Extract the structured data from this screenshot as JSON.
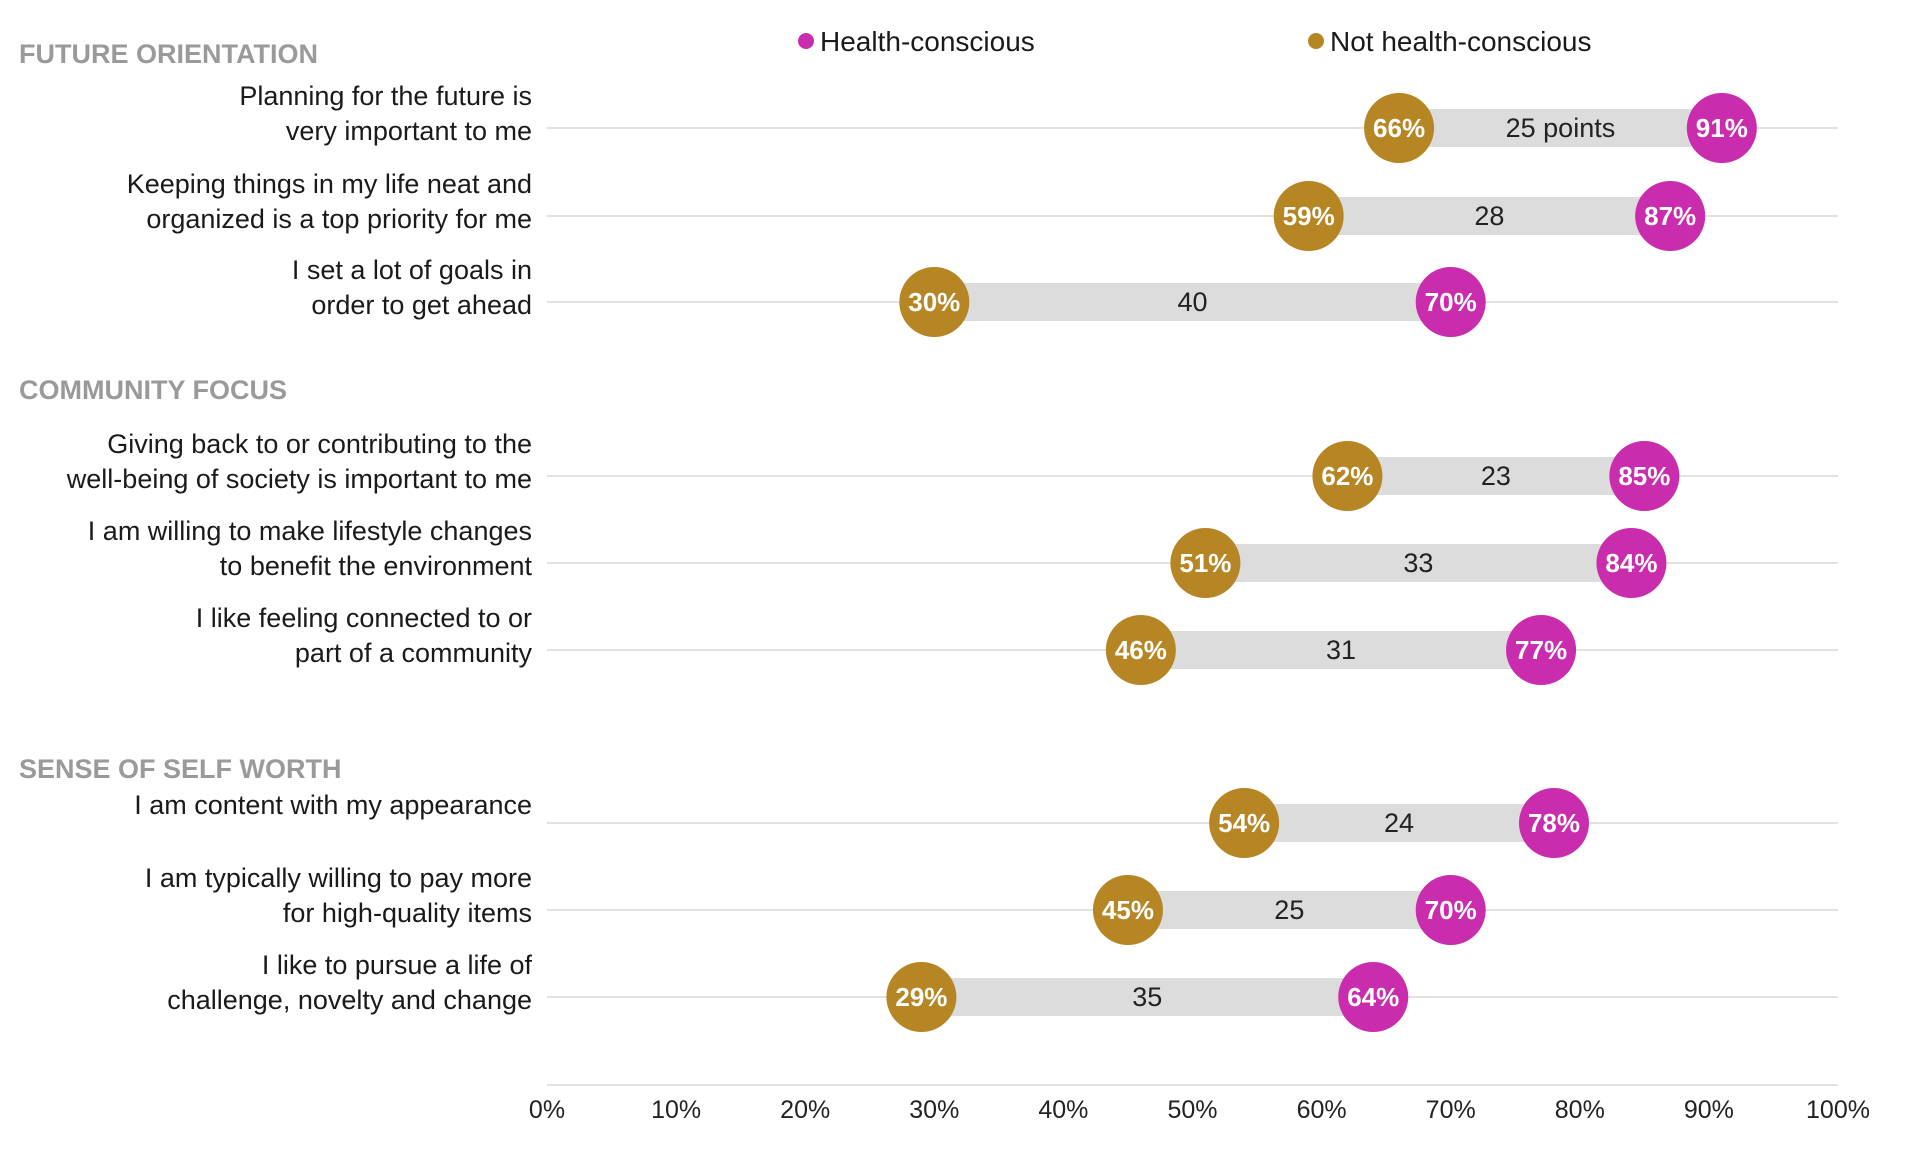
{
  "chart_data": {
    "type": "dumbbell",
    "legend": [
      {
        "name": "Health-conscious",
        "color": "#c92cad"
      },
      {
        "name": "Not health-conscious",
        "color": "#b78624"
      }
    ],
    "legend_position": "top",
    "xlim": [
      0,
      100
    ],
    "x_ticks": [
      "0%",
      "10%",
      "20%",
      "30%",
      "40%",
      "50%",
      "60%",
      "70%",
      "80%",
      "90%",
      "100%"
    ],
    "sections": [
      {
        "title": "FUTURE ORIENTATION",
        "items": [
          {
            "label_lines": [
              "Planning for the future is",
              "very important to me"
            ],
            "not_health_conscious": 66,
            "health_conscious": 91,
            "not_label": "66%",
            "health_label": "91%",
            "gap_label": "25 points"
          },
          {
            "label_lines": [
              "Keeping things in my life neat and",
              "organized is a top priority for me"
            ],
            "not_health_conscious": 59,
            "health_conscious": 87,
            "not_label": "59%",
            "health_label": "87%",
            "gap_label": "28"
          },
          {
            "label_lines": [
              "I set a lot of goals in",
              "order to get ahead"
            ],
            "not_health_conscious": 30,
            "health_conscious": 70,
            "not_label": "30%",
            "health_label": "70%",
            "gap_label": "40"
          }
        ]
      },
      {
        "title": "COMMUNITY FOCUS",
        "items": [
          {
            "label_lines": [
              "Giving back to or contributing to the",
              "well-being of society is important to me"
            ],
            "not_health_conscious": 62,
            "health_conscious": 85,
            "not_label": "62%",
            "health_label": "85%",
            "gap_label": "23"
          },
          {
            "label_lines": [
              "I am willing to make lifestyle changes",
              "to benefit the environment"
            ],
            "not_health_conscious": 51,
            "health_conscious": 84,
            "not_label": "51%",
            "health_label": "84%",
            "gap_label": "33"
          },
          {
            "label_lines": [
              "I like feeling connected to or",
              "part of a community"
            ],
            "not_health_conscious": 46,
            "health_conscious": 77,
            "not_label": "46%",
            "health_label": "77%",
            "gap_label": "31"
          }
        ]
      },
      {
        "title": "SENSE OF SELF WORTH",
        "items": [
          {
            "label_lines": [
              "I am content with my appearance"
            ],
            "not_health_conscious": 54,
            "health_conscious": 78,
            "not_label": "54%",
            "health_label": "78%",
            "gap_label": "24"
          },
          {
            "label_lines": [
              "I am typically willing to pay more",
              "for high-quality items"
            ],
            "not_health_conscious": 45,
            "health_conscious": 70,
            "not_label": "45%",
            "health_label": "70%",
            "gap_label": "25"
          },
          {
            "label_lines": [
              "I like to pursue a life of",
              "challenge, novelty and change"
            ],
            "not_health_conscious": 29,
            "health_conscious": 64,
            "not_label": "29%",
            "health_label": "64%",
            "gap_label": "35"
          }
        ]
      }
    ]
  }
}
